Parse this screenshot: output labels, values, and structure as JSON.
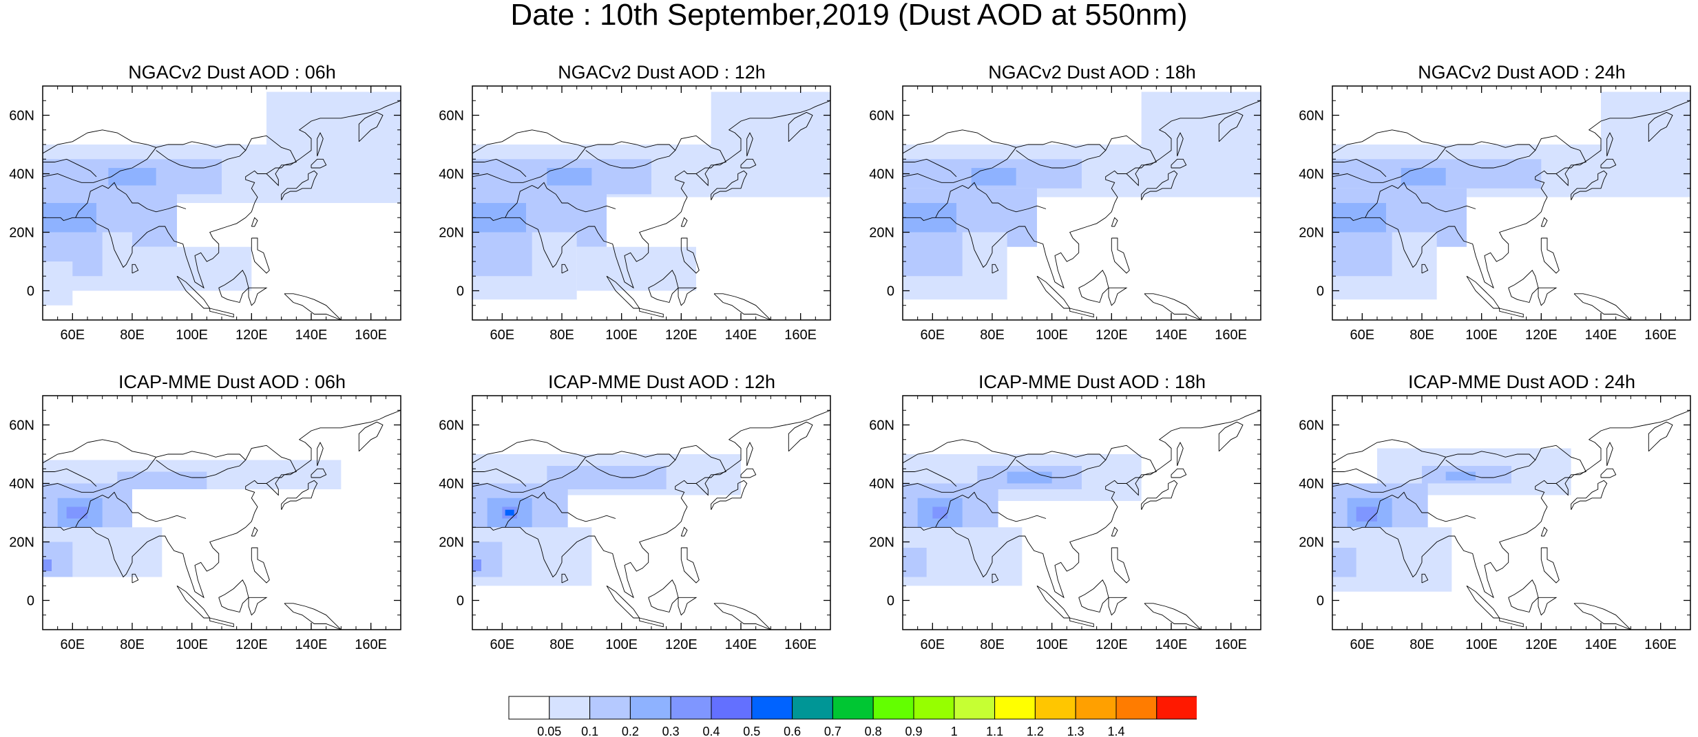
{
  "title": "Date : 10th September,2019 (Dust AOD at 550nm)",
  "panels": [
    {
      "title": "NGACv2 Dust AOD : 06h",
      "model": "NGACv2",
      "hour": "06h",
      "regions": [
        {
          "lon": [
            50,
            170
          ],
          "lat": [
            30,
            50
          ],
          "level": 1
        },
        {
          "lon": [
            50,
            110
          ],
          "lat": [
            33,
            45
          ],
          "level": 2
        },
        {
          "lon": [
            72,
            88
          ],
          "lat": [
            36,
            42
          ],
          "level": 3
        },
        {
          "lon": [
            50,
            95
          ],
          "lat": [
            15,
            35
          ],
          "level": 2
        },
        {
          "lon": [
            50,
            68
          ],
          "lat": [
            20,
            30
          ],
          "level": 3
        },
        {
          "lon": [
            50,
            80
          ],
          "lat": [
            0,
            20
          ],
          "level": 1
        },
        {
          "lon": [
            50,
            70
          ],
          "lat": [
            5,
            20
          ],
          "level": 2
        },
        {
          "lon": [
            125,
            170
          ],
          "lat": [
            45,
            68
          ],
          "level": 1
        },
        {
          "lon": [
            80,
            120
          ],
          "lat": [
            0,
            15
          ],
          "level": 1
        },
        {
          "lon": [
            50,
            60
          ],
          "lat": [
            -5,
            10
          ],
          "level": 1
        }
      ]
    },
    {
      "title": "NGACv2 Dust AOD : 12h",
      "model": "NGACv2",
      "hour": "12h",
      "regions": [
        {
          "lon": [
            50,
            170
          ],
          "lat": [
            32,
            50
          ],
          "level": 1
        },
        {
          "lon": [
            50,
            110
          ],
          "lat": [
            33,
            45
          ],
          "level": 2
        },
        {
          "lon": [
            75,
            90
          ],
          "lat": [
            36,
            42
          ],
          "level": 3
        },
        {
          "lon": [
            50,
            95
          ],
          "lat": [
            15,
            35
          ],
          "level": 2
        },
        {
          "lon": [
            50,
            68
          ],
          "lat": [
            20,
            30
          ],
          "level": 3
        },
        {
          "lon": [
            50,
            85
          ],
          "lat": [
            -3,
            20
          ],
          "level": 1
        },
        {
          "lon": [
            50,
            70
          ],
          "lat": [
            5,
            20
          ],
          "level": 2
        },
        {
          "lon": [
            130,
            170
          ],
          "lat": [
            45,
            68
          ],
          "level": 1
        },
        {
          "lon": [
            85,
            125
          ],
          "lat": [
            0,
            15
          ],
          "level": 1
        }
      ]
    },
    {
      "title": "NGACv2 Dust AOD : 18h",
      "model": "NGACv2",
      "hour": "18h",
      "regions": [
        {
          "lon": [
            50,
            170
          ],
          "lat": [
            32,
            50
          ],
          "level": 1
        },
        {
          "lon": [
            50,
            110
          ],
          "lat": [
            35,
            45
          ],
          "level": 2
        },
        {
          "lon": [
            73,
            88
          ],
          "lat": [
            36,
            42
          ],
          "level": 3
        },
        {
          "lon": [
            50,
            95
          ],
          "lat": [
            15,
            35
          ],
          "level": 2
        },
        {
          "lon": [
            50,
            68
          ],
          "lat": [
            20,
            30
          ],
          "level": 3
        },
        {
          "lon": [
            50,
            85
          ],
          "lat": [
            -3,
            20
          ],
          "level": 1
        },
        {
          "lon": [
            50,
            70
          ],
          "lat": [
            5,
            20
          ],
          "level": 2
        },
        {
          "lon": [
            130,
            170
          ],
          "lat": [
            42,
            68
          ],
          "level": 1
        }
      ]
    },
    {
      "title": "NGACv2 Dust AOD : 24h",
      "model": "NGACv2",
      "hour": "24h",
      "regions": [
        {
          "lon": [
            50,
            170
          ],
          "lat": [
            32,
            50
          ],
          "level": 1
        },
        {
          "lon": [
            50,
            120
          ],
          "lat": [
            35,
            45
          ],
          "level": 2
        },
        {
          "lon": [
            73,
            88
          ],
          "lat": [
            36,
            42
          ],
          "level": 3
        },
        {
          "lon": [
            50,
            95
          ],
          "lat": [
            15,
            35
          ],
          "level": 2
        },
        {
          "lon": [
            50,
            68
          ],
          "lat": [
            20,
            30
          ],
          "level": 3
        },
        {
          "lon": [
            50,
            85
          ],
          "lat": [
            -3,
            20
          ],
          "level": 1
        },
        {
          "lon": [
            50,
            70
          ],
          "lat": [
            5,
            20
          ],
          "level": 2
        },
        {
          "lon": [
            140,
            170
          ],
          "lat": [
            45,
            68
          ],
          "level": 1
        }
      ]
    },
    {
      "title": "ICAP-MME Dust AOD : 06h",
      "model": "ICAP-MME",
      "hour": "06h",
      "regions": [
        {
          "lon": [
            50,
            150
          ],
          "lat": [
            38,
            48
          ],
          "level": 1
        },
        {
          "lon": [
            75,
            105
          ],
          "lat": [
            38,
            44
          ],
          "level": 2
        },
        {
          "lon": [
            50,
            80
          ],
          "lat": [
            20,
            40
          ],
          "level": 2
        },
        {
          "lon": [
            55,
            70
          ],
          "lat": [
            25,
            35
          ],
          "level": 3
        },
        {
          "lon": [
            58,
            65
          ],
          "lat": [
            28,
            32
          ],
          "level": 4
        },
        {
          "lon": [
            50,
            90
          ],
          "lat": [
            8,
            25
          ],
          "level": 1
        },
        {
          "lon": [
            50,
            60
          ],
          "lat": [
            8,
            20
          ],
          "level": 2
        },
        {
          "lon": [
            50,
            53
          ],
          "lat": [
            10,
            14
          ],
          "level": 4
        }
      ]
    },
    {
      "title": "ICAP-MME Dust AOD : 12h",
      "model": "ICAP-MME",
      "hour": "12h",
      "regions": [
        {
          "lon": [
            50,
            140
          ],
          "lat": [
            36,
            50
          ],
          "level": 1
        },
        {
          "lon": [
            75,
            115
          ],
          "lat": [
            38,
            46
          ],
          "level": 2
        },
        {
          "lon": [
            50,
            82
          ],
          "lat": [
            20,
            40
          ],
          "level": 2
        },
        {
          "lon": [
            55,
            70
          ],
          "lat": [
            25,
            35
          ],
          "level": 3
        },
        {
          "lon": [
            60,
            65
          ],
          "lat": [
            28,
            32
          ],
          "level": 4
        },
        {
          "lon": [
            61,
            64
          ],
          "lat": [
            29,
            31
          ],
          "level": 6
        },
        {
          "lon": [
            50,
            90
          ],
          "lat": [
            5,
            25
          ],
          "level": 1
        },
        {
          "lon": [
            50,
            60
          ],
          "lat": [
            8,
            20
          ],
          "level": 2
        },
        {
          "lon": [
            50,
            53
          ],
          "lat": [
            10,
            14
          ],
          "level": 4
        }
      ]
    },
    {
      "title": "ICAP-MME Dust AOD : 18h",
      "model": "ICAP-MME",
      "hour": "18h",
      "regions": [
        {
          "lon": [
            50,
            130
          ],
          "lat": [
            34,
            50
          ],
          "level": 1
        },
        {
          "lon": [
            75,
            110
          ],
          "lat": [
            38,
            46
          ],
          "level": 2
        },
        {
          "lon": [
            85,
            100
          ],
          "lat": [
            40,
            44
          ],
          "level": 3
        },
        {
          "lon": [
            50,
            82
          ],
          "lat": [
            20,
            40
          ],
          "level": 2
        },
        {
          "lon": [
            55,
            70
          ],
          "lat": [
            25,
            35
          ],
          "level": 3
        },
        {
          "lon": [
            60,
            65
          ],
          "lat": [
            28,
            32
          ],
          "level": 4
        },
        {
          "lon": [
            50,
            90
          ],
          "lat": [
            5,
            25
          ],
          "level": 1
        },
        {
          "lon": [
            50,
            58
          ],
          "lat": [
            8,
            18
          ],
          "level": 2
        }
      ]
    },
    {
      "title": "ICAP-MME Dust AOD : 24h",
      "model": "ICAP-MME",
      "hour": "24h",
      "regions": [
        {
          "lon": [
            65,
            130
          ],
          "lat": [
            36,
            52
          ],
          "level": 1
        },
        {
          "lon": [
            80,
            110
          ],
          "lat": [
            40,
            46
          ],
          "level": 2
        },
        {
          "lon": [
            88,
            98
          ],
          "lat": [
            41,
            44
          ],
          "level": 3
        },
        {
          "lon": [
            50,
            82
          ],
          "lat": [
            15,
            40
          ],
          "level": 2
        },
        {
          "lon": [
            55,
            70
          ],
          "lat": [
            25,
            35
          ],
          "level": 3
        },
        {
          "lon": [
            58,
            65
          ],
          "lat": [
            27,
            32
          ],
          "level": 4
        },
        {
          "lon": [
            50,
            90
          ],
          "lat": [
            3,
            25
          ],
          "level": 1
        },
        {
          "lon": [
            50,
            58
          ],
          "lat": [
            8,
            18
          ],
          "level": 2
        }
      ]
    }
  ],
  "map_extent": {
    "lon": [
      50,
      170
    ],
    "lat": [
      -10,
      70
    ]
  },
  "x_ticks": [
    {
      "value": 60,
      "label": "60E"
    },
    {
      "value": 80,
      "label": "80E"
    },
    {
      "value": 100,
      "label": "100E"
    },
    {
      "value": 120,
      "label": "120E"
    },
    {
      "value": 140,
      "label": "140E"
    },
    {
      "value": 160,
      "label": "160E"
    }
  ],
  "y_ticks": [
    {
      "value": 0,
      "label": "0"
    },
    {
      "value": 20,
      "label": "20N"
    },
    {
      "value": 40,
      "label": "40N"
    },
    {
      "value": 60,
      "label": "60N"
    }
  ],
  "colorbar": {
    "colors": [
      "#ffffff",
      "#d6e2ff",
      "#b5c9ff",
      "#8eb2ff",
      "#7f96ff",
      "#6370ff",
      "#0063ff",
      "#009696",
      "#00c633",
      "#63ff00",
      "#96ff00",
      "#c6ff33",
      "#ffff00",
      "#ffc600",
      "#ffa000",
      "#ff7c00",
      "#ff1900"
    ],
    "labels": [
      "0.05",
      "0.1",
      "0.2",
      "0.3",
      "0.4",
      "0.5",
      "0.6",
      "0.7",
      "0.8",
      "0.9",
      "1",
      "1.1",
      "1.2",
      "1.3",
      "1.4"
    ]
  }
}
